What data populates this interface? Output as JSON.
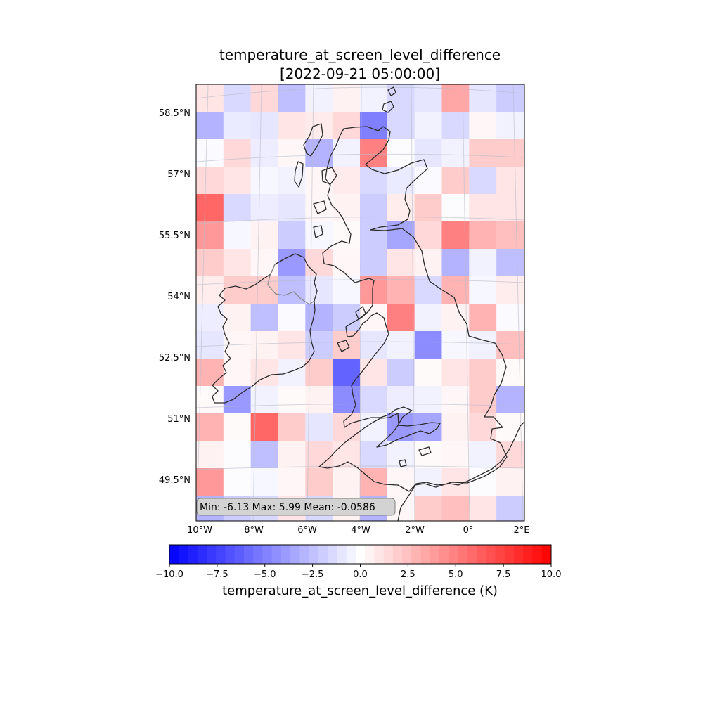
{
  "chart_data": {
    "type": "heatmap",
    "title_line1": "temperature_at_screen_level_difference",
    "title_line2": "[2022-09-21 05:00:00]",
    "colorbar_label": "temperature_at_screen_level_difference (K)",
    "colorbar_range": [
      -10,
      10
    ],
    "colorbar_ticks": [
      "−10.0",
      "−7.5",
      "−5.0",
      "−2.5",
      "0.0",
      "2.5",
      "5.0",
      "7.5",
      "10.0"
    ],
    "colormap": "bwr",
    "x_tick_labels": [
      "10°W",
      "8°W",
      "6°W",
      "4°W",
      "2°W",
      "0°",
      "2°E"
    ],
    "y_tick_labels": [
      "58.5°N",
      "57°N",
      "55.5°N",
      "54°N",
      "52.5°N",
      "51°N",
      "49.5°N"
    ],
    "stats_text": "Min: -6.13 Max: 5.99 Mean: -0.0586",
    "grid": [
      [
        1,
        -1.5,
        1.5,
        -2.5,
        -0.5,
        0.5,
        -0.5,
        -1.5,
        -1,
        3.5,
        -1,
        -2,
        0.5
      ],
      [
        -3,
        -0.8,
        -1,
        1,
        0.8,
        1.5,
        -5,
        -1.5,
        -0.5,
        -1.5,
        0.3,
        -0.5,
        2
      ],
      [
        -0.2,
        1.5,
        -0.7,
        0.3,
        -3,
        -0.5,
        5,
        -0.1,
        -1,
        -0.5,
        2,
        2,
        1
      ],
      [
        1.5,
        1,
        -0.3,
        -0.5,
        0.3,
        0.8,
        -1.5,
        -0.8,
        -0.2,
        2,
        -1.5,
        1,
        -1
      ],
      [
        6,
        -1.5,
        -0.7,
        -1,
        0.3,
        0.5,
        -2,
        0.7,
        2,
        -0.1,
        1,
        1,
        -0.5
      ],
      [
        4,
        -0.3,
        0.5,
        -2,
        -0.3,
        0.2,
        -2,
        -3.5,
        1.5,
        5,
        3,
        2.5,
        2.5
      ],
      [
        2,
        1,
        0.3,
        -4,
        1.5,
        0.3,
        -2,
        1,
        0.5,
        -3,
        -0.5,
        -2.5,
        -1
      ],
      [
        0.7,
        2,
        2,
        -2.5,
        -1,
        -0.3,
        4,
        3,
        -1.5,
        3,
        -0.3,
        0.7,
        1.5
      ],
      [
        -0.7,
        0.5,
        -2.5,
        -0.2,
        -3,
        -2,
        0.3,
        5,
        -0.5,
        0.5,
        3,
        -0.2,
        3
      ],
      [
        -1,
        0.3,
        0.5,
        1,
        -2,
        2,
        -1,
        -0.5,
        -4.5,
        -0.3,
        -0.5,
        2.5,
        -3.5
      ],
      [
        3,
        0.3,
        1,
        -0.5,
        2,
        -6.13,
        1,
        -2,
        0.2,
        1,
        2,
        0.2,
        -0.7
      ],
      [
        0.2,
        -4,
        -0.5,
        0.2,
        0.5,
        -4.5,
        -1.5,
        -0.7,
        -0.5,
        0.3,
        2,
        -3,
        1.5
      ],
      [
        3,
        0.2,
        5.99,
        2,
        -1,
        1.5,
        -0.5,
        -4,
        -3.5,
        0.5,
        1.5,
        0.2,
        2.5
      ],
      [
        0.5,
        -0.1,
        -2.5,
        0.5,
        1.5,
        1,
        -1.5,
        -0.5,
        0.2,
        0.3,
        -0.5,
        1.5,
        0.3
      ],
      [
        4,
        -0.1,
        -0.3,
        0.3,
        2,
        0.5,
        3,
        0.3,
        -0.5,
        1,
        -0.1,
        0.5,
        0.3
      ],
      [
        -3,
        -2,
        -1.5,
        1,
        -1.5,
        0.5,
        -3,
        0.3,
        2,
        2.5,
        1,
        -2,
        -1
      ]
    ]
  }
}
